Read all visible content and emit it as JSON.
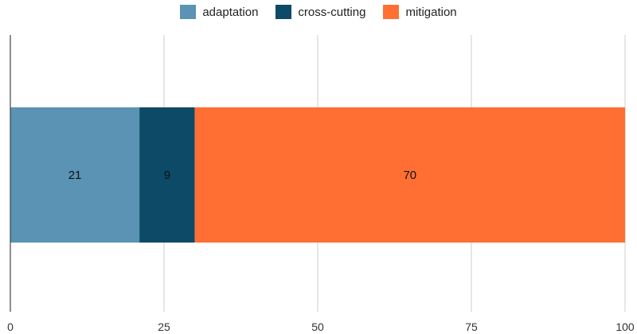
{
  "chart_data": {
    "type": "bar",
    "orientation": "horizontal",
    "stacked": true,
    "categories": [
      ""
    ],
    "series": [
      {
        "name": "adaptation",
        "values": [
          21
        ],
        "color": "#5a93b3"
      },
      {
        "name": "cross-cutting",
        "values": [
          9
        ],
        "color": "#0d4a67"
      },
      {
        "name": "mitigation",
        "values": [
          70
        ],
        "color": "#ff6f33"
      }
    ],
    "xlim": [
      0,
      100
    ],
    "xticks": [
      "0",
      "25",
      "50",
      "75",
      "100"
    ],
    "grid": true,
    "legend_position": "top",
    "data_labels": true
  }
}
